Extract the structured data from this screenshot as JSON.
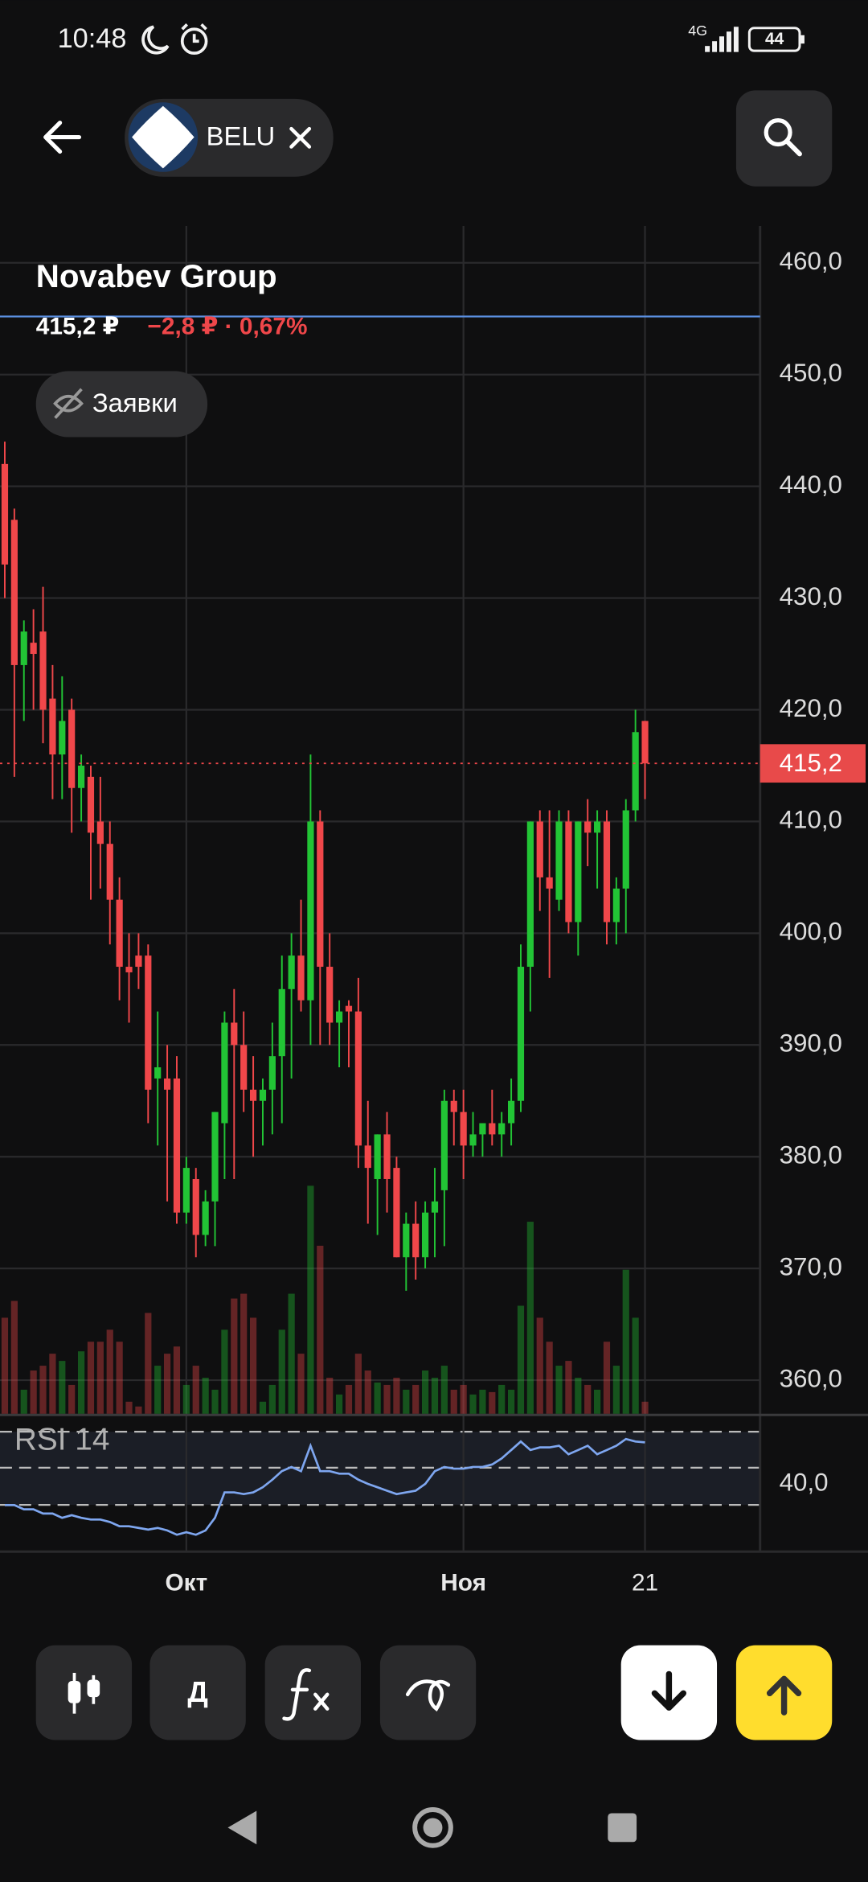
{
  "status_bar": {
    "time": "10:48",
    "network": "4G",
    "battery": "44"
  },
  "top_bar": {
    "ticker": "BELU"
  },
  "header": {
    "name": "Novabev Group",
    "price": "415,2 ₽",
    "change": "−2,8 ₽ · 0,67%",
    "orders_button": "Заявки"
  },
  "chart_data": {
    "type": "candlestick",
    "categories": [
      null,
      null,
      null,
      null,
      null,
      null,
      null,
      null,
      null,
      null,
      null,
      null,
      null,
      null,
      null,
      null,
      null,
      null,
      null,
      "Окт",
      null,
      null,
      null,
      null,
      null,
      null,
      null,
      null,
      null,
      null,
      null,
      null,
      null,
      null,
      null,
      null,
      null,
      null,
      null,
      null,
      null,
      null,
      null,
      null,
      null,
      null,
      null,
      null,
      "Ноя",
      null,
      null,
      null,
      null,
      null,
      null,
      null,
      null,
      null,
      null,
      null,
      null,
      null,
      null,
      null,
      null,
      null,
      null,
      "21"
    ],
    "candles": [
      [
        442,
        444,
        430,
        433,
        40
      ],
      [
        437,
        438,
        414,
        424,
        47
      ],
      [
        424,
        428,
        419,
        427,
        10
      ],
      [
        426,
        429,
        420,
        425,
        18
      ],
      [
        427,
        431,
        417,
        420,
        20
      ],
      [
        421,
        424,
        412,
        416,
        25
      ],
      [
        416,
        423,
        412,
        419,
        22
      ],
      [
        420,
        421,
        409,
        413,
        12
      ],
      [
        413,
        416,
        410,
        415,
        26
      ],
      [
        414,
        415,
        403,
        409,
        30
      ],
      [
        410,
        414,
        404,
        408,
        30
      ],
      [
        408,
        410,
        399,
        403,
        35
      ],
      [
        403,
        405,
        394,
        397,
        30
      ],
      [
        397,
        400,
        392,
        396.5,
        5
      ],
      [
        398,
        400,
        395,
        397,
        3
      ],
      [
        398,
        399,
        383,
        386,
        42
      ],
      [
        387,
        393,
        381,
        388,
        20
      ],
      [
        387,
        390,
        376,
        386,
        25
      ],
      [
        387,
        389,
        374,
        375,
        28
      ],
      [
        375,
        380,
        374,
        379,
        12
      ],
      [
        378,
        379,
        371,
        373,
        20
      ],
      [
        373,
        377,
        372,
        376,
        15
      ],
      [
        376,
        384,
        372,
        384,
        10
      ],
      [
        383,
        393,
        378,
        392,
        35
      ],
      [
        392,
        395,
        378,
        390,
        48
      ],
      [
        390,
        393,
        384,
        386,
        50
      ],
      [
        386,
        389,
        380,
        385,
        40
      ],
      [
        385,
        387,
        381,
        386,
        5
      ],
      [
        386,
        392,
        382,
        389,
        12
      ],
      [
        389,
        398,
        383,
        395,
        35
      ],
      [
        395,
        400,
        387,
        398,
        50
      ],
      [
        398,
        403,
        393,
        394,
        25
      ],
      [
        394,
        416,
        390,
        410,
        95
      ],
      [
        410,
        411,
        390,
        397,
        70
      ],
      [
        397,
        400,
        390,
        392,
        15
      ],
      [
        392,
        394,
        388,
        393,
        8
      ],
      [
        393.5,
        394,
        388,
        393,
        12
      ],
      [
        393,
        396,
        379,
        381,
        25
      ],
      [
        381,
        385,
        374,
        379,
        18
      ],
      [
        378,
        382,
        373,
        382,
        13
      ],
      [
        382,
        384,
        375,
        378,
        12
      ],
      [
        379,
        380,
        371,
        371,
        15
      ],
      [
        371,
        375,
        368,
        374,
        10
      ],
      [
        374,
        376,
        369,
        371,
        12
      ],
      [
        371,
        376,
        370,
        375,
        18
      ],
      [
        375,
        379,
        371,
        376,
        15
      ],
      [
        377,
        386,
        372,
        385,
        20
      ],
      [
        385,
        386,
        381,
        384,
        10
      ],
      [
        384,
        386,
        378,
        381,
        12
      ],
      [
        381,
        384,
        380,
        382,
        8
      ],
      [
        382,
        383,
        380,
        383,
        10
      ],
      [
        383,
        386,
        381,
        382,
        9
      ],
      [
        382,
        384,
        380,
        383,
        12
      ],
      [
        383,
        387,
        381,
        385,
        10
      ],
      [
        385,
        399,
        384,
        397,
        45
      ],
      [
        397,
        410,
        393,
        410,
        80
      ],
      [
        410,
        411,
        402,
        405,
        40
      ],
      [
        405,
        411,
        396,
        404,
        30
      ],
      [
        403,
        411,
        402,
        410,
        20
      ],
      [
        410,
        411,
        400,
        401,
        22
      ],
      [
        401,
        410,
        398,
        410,
        15
      ],
      [
        410,
        412,
        406,
        409,
        12
      ],
      [
        409,
        411,
        404,
        410,
        10
      ],
      [
        410,
        411,
        399,
        401,
        30
      ],
      [
        401,
        405,
        399,
        404,
        20
      ],
      [
        404,
        412,
        400,
        411,
        60
      ],
      [
        411,
        420,
        410,
        418,
        40
      ],
      [
        419,
        419,
        412,
        415.2,
        5
      ]
    ],
    "ylim": [
      357,
      463.3
    ],
    "yticks": [
      {
        "value": 360,
        "label": "360,0"
      },
      {
        "value": 370,
        "label": "370,0"
      },
      {
        "value": 380,
        "label": "380,0"
      },
      {
        "value": 390,
        "label": "390,0"
      },
      {
        "value": 400,
        "label": "400,0"
      },
      {
        "value": 410,
        "label": "410,0"
      },
      {
        "value": 420,
        "label": "420,0"
      },
      {
        "value": 430,
        "label": "430,0"
      },
      {
        "value": 440,
        "label": "440,0"
      },
      {
        "value": 450,
        "label": "450,0"
      },
      {
        "value": 460,
        "label": "460,0"
      }
    ],
    "grid": true,
    "last_price": {
      "value": 415.2,
      "label": "415,2"
    },
    "level": 455.2,
    "up_color": "#22c435",
    "down_color": "#f0474a",
    "rsi": {
      "label": "RSI 14",
      "color": "#7ea6ef",
      "ylim": [
        32,
        48
      ],
      "yticks": [
        {
          "value": 40,
          "label": "40,0"
        }
      ],
      "values": [
        37.5,
        37.5,
        37,
        37,
        36.5,
        36.5,
        36,
        36.3,
        36,
        35.8,
        35.8,
        35.5,
        35,
        35,
        34.8,
        34.6,
        34.8,
        34.5,
        34,
        34.3,
        34,
        34.5,
        36,
        39,
        39,
        38.8,
        39,
        39.6,
        40.5,
        41.5,
        42,
        41.5,
        44.5,
        41.5,
        41.5,
        41.2,
        41.2,
        40.5,
        40,
        39.6,
        39.2,
        38.8,
        39,
        39.2,
        40,
        41.5,
        42,
        41.8,
        41.8,
        42,
        42,
        42.3,
        43,
        44,
        45,
        44,
        44.3,
        44.3,
        44.5,
        43.5,
        44,
        44.5,
        43.5,
        44,
        44.5,
        45.3,
        45,
        44.9
      ]
    }
  },
  "toolbar": {
    "period_button": "Д"
  }
}
